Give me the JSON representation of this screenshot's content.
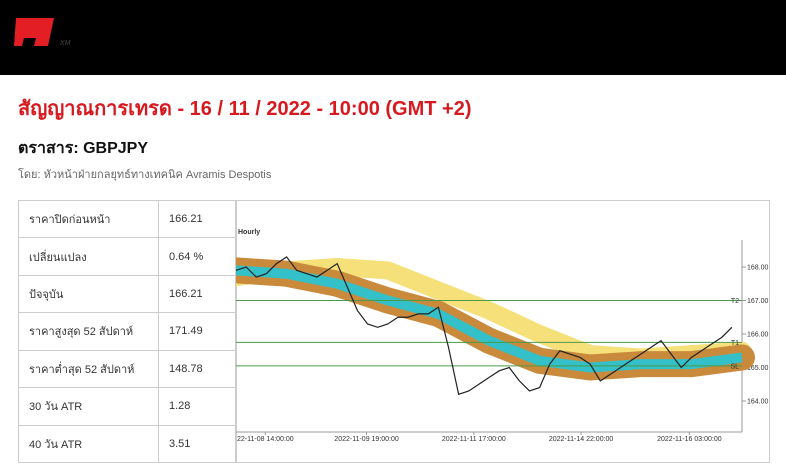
{
  "logo": {
    "text": "XM"
  },
  "header": {
    "title": "สัญญาณการเทรด - 16 / 11 / 2022 - 10:00 (GMT +2)",
    "instrument": "ตราสาร: GBPJPY",
    "byline": "โดย: หัวหน้าฝ่ายกลยุทธ์ทางเทคนิค Avramis Despotis"
  },
  "table": {
    "rows": [
      [
        "ราคาปิดก่อนหน้า",
        "166.21"
      ],
      [
        "เปลี่ยนแปลง",
        "0.64 %"
      ],
      [
        "ปัจจุบัน",
        "166.21"
      ],
      [
        "ราคาสูงสุด 52 สัปดาห์",
        "171.49"
      ],
      [
        "ราคาต่ำสุด 52 สัปดาห์",
        "148.78"
      ],
      [
        "30 วัน ATR",
        "1.28"
      ],
      [
        "40 วัน ATR",
        "3.51"
      ]
    ]
  },
  "chart": {
    "type": "line",
    "label": "Hourly",
    "xlim": [
      0,
      50
    ],
    "ylim": [
      163,
      170
    ],
    "yticks": [
      {
        "value": 164,
        "label": "164.00"
      },
      {
        "value": 165,
        "label": "165.00"
      },
      {
        "value": 166,
        "label": "166.00"
      },
      {
        "value": 167,
        "label": "167.00"
      },
      {
        "value": 168,
        "label": "168.00"
      }
    ],
    "xticks": [
      {
        "value": 2.9,
        "label": "22-11-08 14:00:00"
      },
      {
        "value": 12.9,
        "label": "2022-11-09 19:00:00"
      },
      {
        "value": 23.5,
        "label": "2022-11-11 17:00:00"
      },
      {
        "value": 34.1,
        "label": "2022-11-14 22:00:00"
      },
      {
        "value": 44.8,
        "label": "2022-11-16 03:00:00"
      }
    ],
    "levels": [
      {
        "name": "T2",
        "value": 167.0,
        "color": "#4a9a4a"
      },
      {
        "name": "T1",
        "value": 165.75,
        "color": "#4a9a4a"
      },
      {
        "name": "SL",
        "value": 165.05,
        "color": "#4a9a4a"
      }
    ],
    "bands": [
      {
        "color": "#f5e07a",
        "x": [
          0,
          5,
          10,
          15,
          20,
          25,
          30,
          35,
          40,
          45,
          50
        ],
        "values": [
          167.7,
          167.9,
          168.0,
          167.9,
          167.3,
          166.7,
          166.0,
          165.4,
          165.3,
          165.4,
          165.5
        ]
      },
      {
        "color": "#c98a3c",
        "x": [
          0,
          5,
          10,
          15,
          20,
          25,
          30,
          35,
          40,
          45,
          50
        ],
        "values": [
          167.9,
          167.8,
          167.5,
          167.0,
          166.6,
          165.8,
          165.2,
          165.0,
          165.1,
          165.1,
          165.3
        ]
      }
    ],
    "series": [
      {
        "color": "#222222",
        "values": [
          167.9,
          168.0,
          167.7,
          167.8,
          168.1,
          168.3,
          167.9,
          167.8,
          167.7,
          167.9,
          168.1,
          167.4,
          166.7,
          166.3,
          166.2,
          166.3,
          166.5,
          166.5,
          166.6,
          166.6,
          166.8,
          165.6,
          164.2,
          164.3,
          164.5,
          164.7,
          164.9,
          165.0,
          164.6,
          164.3,
          164.4,
          165.1,
          165.5,
          165.4,
          165.3,
          165.1,
          164.6,
          164.8,
          165.0,
          165.2,
          165.4,
          165.6,
          165.8,
          165.4,
          165.0,
          165.3,
          165.5,
          165.7,
          165.9,
          166.2
        ]
      }
    ]
  }
}
